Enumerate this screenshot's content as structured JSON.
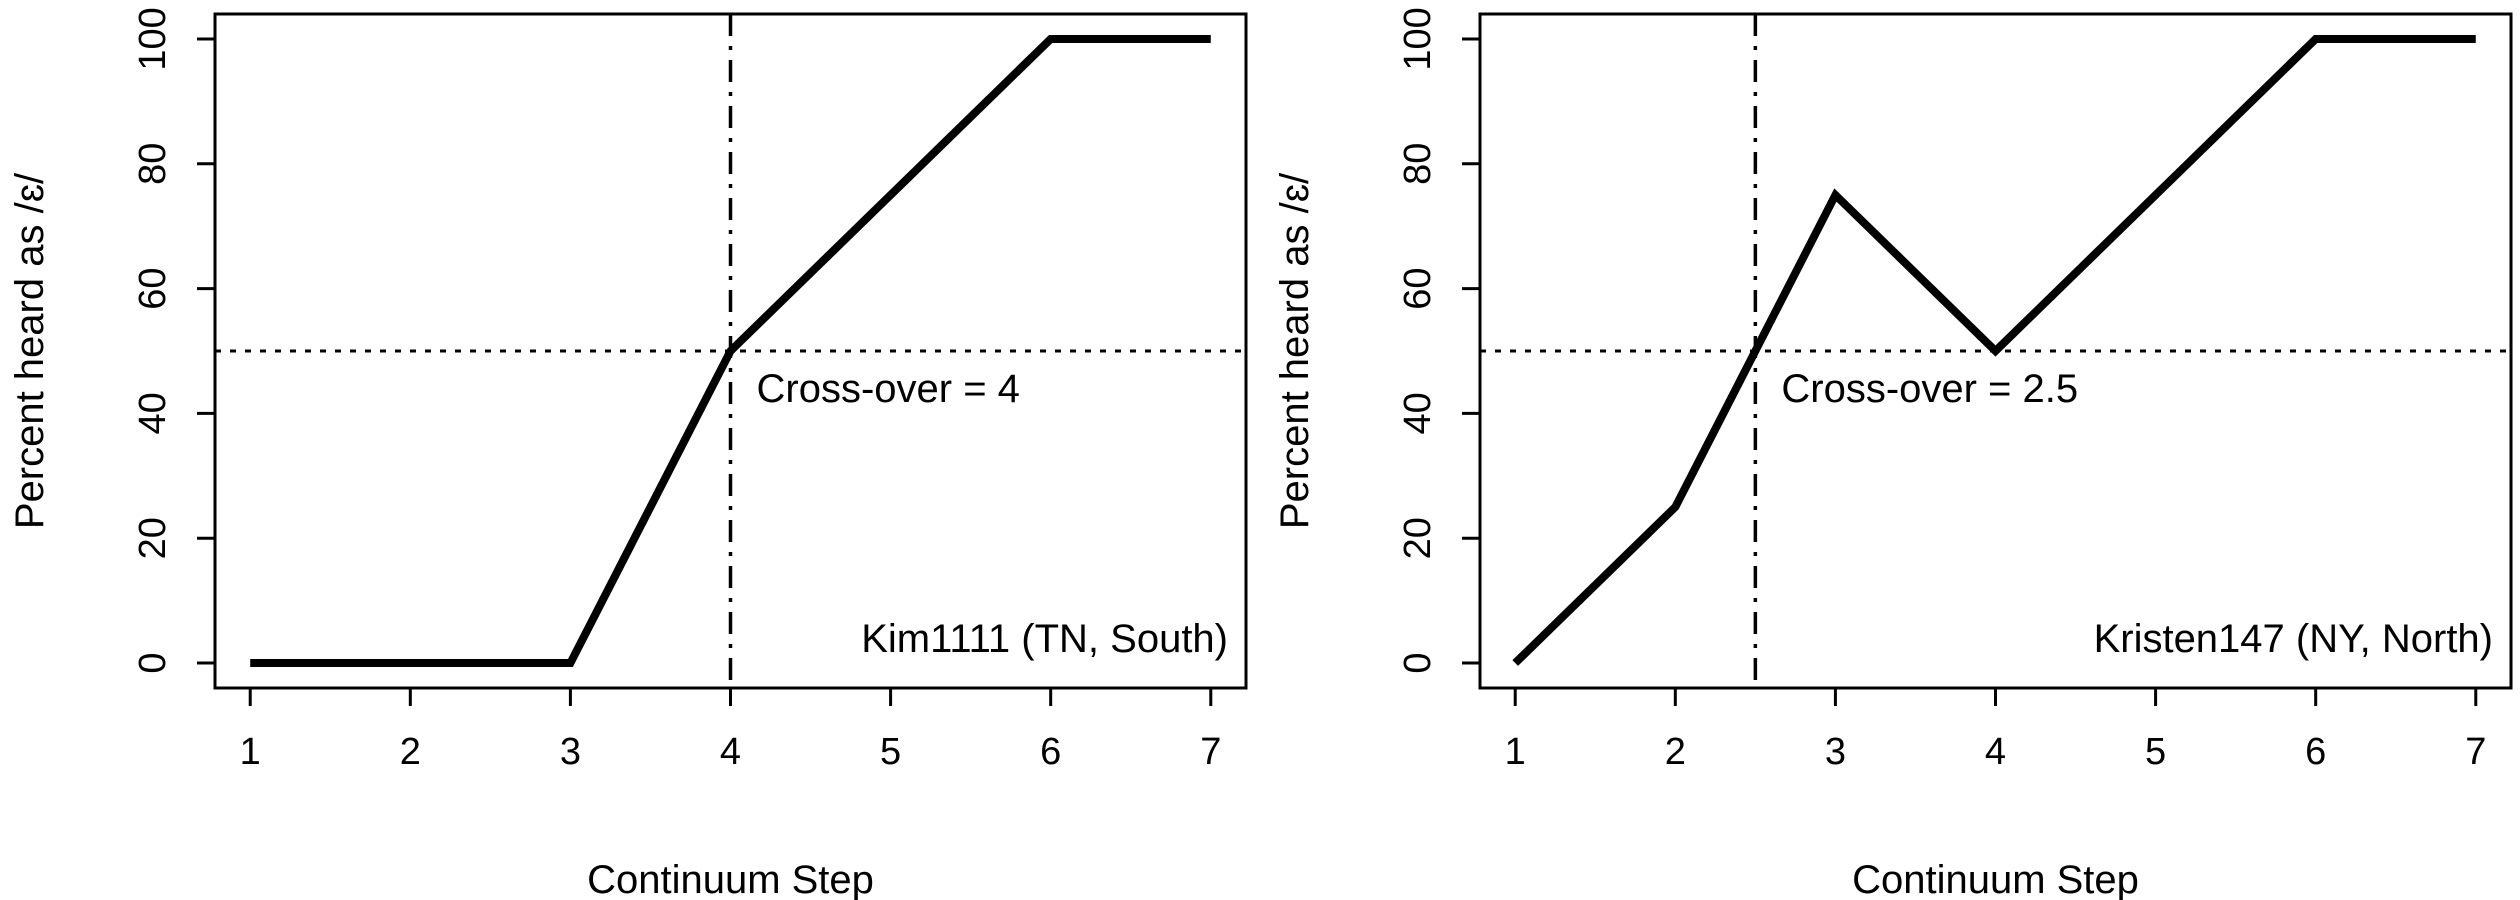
{
  "chart_data": [
    {
      "type": "line",
      "xlabel": "Continuum Step",
      "ylabel": "Percent heard as /ɛ/",
      "xlim": [
        0.78,
        7.22
      ],
      "ylim": [
        -4,
        104
      ],
      "x_ticks": [
        1,
        2,
        3,
        4,
        5,
        6,
        7
      ],
      "y_ticks": [
        0,
        20,
        40,
        60,
        80,
        100
      ],
      "grid": false,
      "series": [
        {
          "x": [
            1,
            2,
            3,
            4,
            5,
            6,
            7
          ],
          "values": [
            0,
            0,
            0,
            50,
            75,
            100,
            100
          ]
        }
      ],
      "reference_lines": {
        "horizontal_y": 50,
        "vertical_x": 4
      },
      "annotations": {
        "crossover": "Cross-over = 4",
        "speaker": "Kim1111 (TN, South)"
      }
    },
    {
      "type": "line",
      "xlabel": "Continuum Step",
      "ylabel": "Percent heard as /ɛ/",
      "xlim": [
        0.78,
        7.22
      ],
      "ylim": [
        -4,
        104
      ],
      "x_ticks": [
        1,
        2,
        3,
        4,
        5,
        6,
        7
      ],
      "y_ticks": [
        0,
        20,
        40,
        60,
        80,
        100
      ],
      "grid": false,
      "series": [
        {
          "x": [
            1,
            2,
            3,
            4,
            5,
            6,
            7
          ],
          "values": [
            0,
            25,
            75,
            50,
            75,
            100,
            100
          ]
        }
      ],
      "reference_lines": {
        "horizontal_y": 50,
        "vertical_x": 2.5
      },
      "annotations": {
        "crossover": "Cross-over = 2.5",
        "speaker": "Kristen147 (NY, North)"
      }
    }
  ]
}
